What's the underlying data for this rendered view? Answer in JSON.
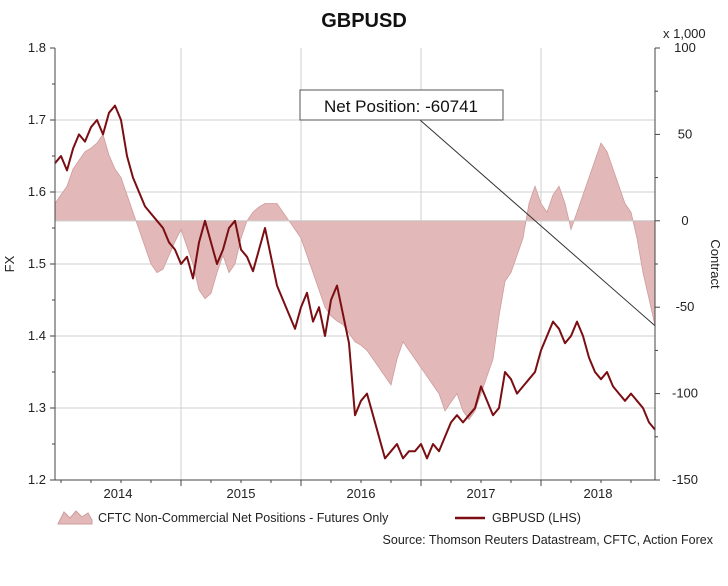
{
  "colors": {
    "fx_line": "#7a0e12",
    "positions_fill": "#e2b8b8",
    "positions_stroke": "#cf9c9c",
    "grid": "#cfcfcf",
    "axis": "#444444"
  },
  "chart_data": {
    "type": "area+line",
    "title": "GBPUSD",
    "left_axis": {
      "label": "FX",
      "range": [
        1.2,
        1.8
      ],
      "ticks": [
        "1.2",
        "1.3",
        "1.4",
        "1.5",
        "1.6",
        "1.7",
        "1.8"
      ]
    },
    "right_axis": {
      "label": "Contract",
      "unit": "x 1,000",
      "range": [
        -150,
        100
      ],
      "ticks": [
        "-150",
        "-100",
        "-50",
        "0",
        "50",
        "100"
      ]
    },
    "x_axis": {
      "range": [
        2013.45,
        2018.45
      ],
      "year_labels": [
        "2014",
        "2015",
        "2016",
        "2017",
        "2018"
      ],
      "year_boundaries": [
        2014.5,
        2015.5,
        2016.5,
        2017.5
      ]
    },
    "annotation": {
      "text": "Net Position: -60741",
      "value": -60.741,
      "x": 2018.45
    },
    "legend": [
      {
        "label": "CFTC Non-Commercial Net Positions - Futures Only",
        "kind": "area"
      },
      {
        "label": "GBPUSD (LHS)",
        "kind": "line"
      }
    ],
    "source": "Source: Thomson Reuters Datastream, CFTC, Action Forex",
    "series": [
      {
        "name": "CFTC Non-Commercial Net Positions - Futures Only",
        "axis": "right",
        "x": [
          2013.45,
          2013.5,
          2013.55,
          2013.6,
          2013.65,
          2013.7,
          2013.75,
          2013.8,
          2013.85,
          2013.9,
          2013.95,
          2014.0,
          2014.05,
          2014.1,
          2014.15,
          2014.2,
          2014.25,
          2014.3,
          2014.35,
          2014.4,
          2014.45,
          2014.5,
          2014.55,
          2014.6,
          2014.65,
          2014.7,
          2014.75,
          2014.8,
          2014.85,
          2014.9,
          2014.95,
          2015.0,
          2015.05,
          2015.1,
          2015.15,
          2015.2,
          2015.25,
          2015.3,
          2015.35,
          2015.4,
          2015.45,
          2015.5,
          2015.55,
          2015.6,
          2015.65,
          2015.7,
          2015.75,
          2015.8,
          2015.85,
          2015.9,
          2015.95,
          2016.0,
          2016.05,
          2016.1,
          2016.15,
          2016.2,
          2016.25,
          2016.3,
          2016.35,
          2016.4,
          2016.45,
          2016.5,
          2016.55,
          2016.6,
          2016.65,
          2016.7,
          2016.75,
          2016.8,
          2016.85,
          2016.9,
          2016.95,
          2017.0,
          2017.05,
          2017.1,
          2017.15,
          2017.2,
          2017.25,
          2017.3,
          2017.35,
          2017.4,
          2017.45,
          2017.5,
          2017.55,
          2017.6,
          2017.65,
          2017.7,
          2017.75,
          2017.8,
          2017.85,
          2017.9,
          2017.95,
          2018.0,
          2018.05,
          2018.1,
          2018.15,
          2018.2,
          2018.25,
          2018.3,
          2018.35,
          2018.4,
          2018.45
        ],
        "values": [
          10,
          15,
          20,
          30,
          35,
          40,
          42,
          45,
          50,
          38,
          30,
          25,
          15,
          5,
          -5,
          -15,
          -25,
          -30,
          -28,
          -20,
          -12,
          -5,
          -15,
          -25,
          -40,
          -45,
          -42,
          -30,
          -20,
          -30,
          -25,
          -10,
          0,
          5,
          8,
          10,
          10,
          10,
          5,
          0,
          -5,
          -10,
          -20,
          -30,
          -40,
          -50,
          -55,
          -58,
          -60,
          -65,
          -70,
          -72,
          -75,
          -80,
          -85,
          -90,
          -95,
          -80,
          -70,
          -75,
          -80,
          -85,
          -90,
          -95,
          -100,
          -110,
          -105,
          -100,
          -110,
          -115,
          -110,
          -100,
          -90,
          -80,
          -55,
          -35,
          -30,
          -20,
          -10,
          10,
          20,
          10,
          5,
          15,
          20,
          10,
          -5,
          5,
          15,
          25,
          35,
          45,
          40,
          30,
          20,
          10,
          5,
          -10,
          -30,
          -45,
          -60.741
        ]
      },
      {
        "name": "GBPUSD (LHS)",
        "axis": "left",
        "x": [
          2013.45,
          2013.5,
          2013.55,
          2013.6,
          2013.65,
          2013.7,
          2013.75,
          2013.8,
          2013.85,
          2013.9,
          2013.95,
          2014.0,
          2014.05,
          2014.1,
          2014.15,
          2014.2,
          2014.25,
          2014.3,
          2014.35,
          2014.4,
          2014.45,
          2014.5,
          2014.55,
          2014.6,
          2014.65,
          2014.7,
          2014.75,
          2014.8,
          2014.85,
          2014.9,
          2014.95,
          2015.0,
          2015.05,
          2015.1,
          2015.15,
          2015.2,
          2015.25,
          2015.3,
          2015.35,
          2015.4,
          2015.45,
          2015.5,
          2015.55,
          2015.6,
          2015.65,
          2015.7,
          2015.75,
          2015.8,
          2015.85,
          2015.9,
          2015.95,
          2016.0,
          2016.05,
          2016.1,
          2016.15,
          2016.2,
          2016.25,
          2016.3,
          2016.35,
          2016.4,
          2016.45,
          2016.5,
          2016.55,
          2016.6,
          2016.65,
          2016.7,
          2016.75,
          2016.8,
          2016.85,
          2016.9,
          2016.95,
          2017.0,
          2017.05,
          2017.1,
          2017.15,
          2017.2,
          2017.25,
          2017.3,
          2017.35,
          2017.4,
          2017.45,
          2017.5,
          2017.55,
          2017.6,
          2017.65,
          2017.7,
          2017.75,
          2017.8,
          2017.85,
          2017.9,
          2017.95,
          2018.0,
          2018.05,
          2018.1,
          2018.15,
          2018.2,
          2018.25,
          2018.3,
          2018.35,
          2018.4,
          2018.45
        ],
        "values": [
          1.64,
          1.65,
          1.63,
          1.66,
          1.68,
          1.67,
          1.69,
          1.7,
          1.68,
          1.71,
          1.72,
          1.7,
          1.65,
          1.62,
          1.6,
          1.58,
          1.57,
          1.56,
          1.55,
          1.53,
          1.52,
          1.5,
          1.51,
          1.48,
          1.53,
          1.56,
          1.53,
          1.5,
          1.52,
          1.55,
          1.56,
          1.52,
          1.51,
          1.49,
          1.52,
          1.55,
          1.51,
          1.47,
          1.45,
          1.43,
          1.41,
          1.44,
          1.46,
          1.42,
          1.44,
          1.4,
          1.45,
          1.47,
          1.43,
          1.39,
          1.29,
          1.31,
          1.32,
          1.29,
          1.26,
          1.23,
          1.24,
          1.25,
          1.23,
          1.24,
          1.24,
          1.25,
          1.23,
          1.25,
          1.24,
          1.26,
          1.28,
          1.29,
          1.28,
          1.29,
          1.3,
          1.33,
          1.31,
          1.29,
          1.3,
          1.35,
          1.34,
          1.32,
          1.33,
          1.34,
          1.35,
          1.38,
          1.4,
          1.42,
          1.41,
          1.39,
          1.4,
          1.42,
          1.4,
          1.37,
          1.35,
          1.34,
          1.35,
          1.33,
          1.32,
          1.31,
          1.32,
          1.31,
          1.3,
          1.28,
          1.27
        ]
      }
    ]
  }
}
